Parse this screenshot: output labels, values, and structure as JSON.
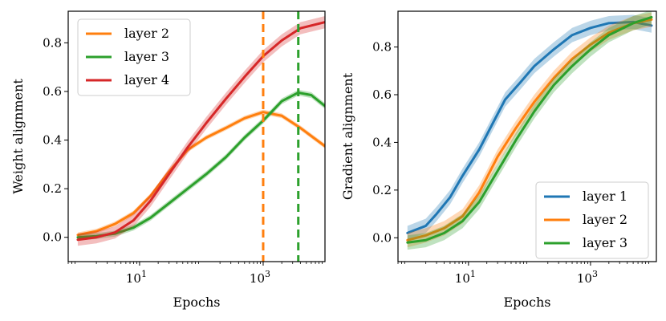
{
  "chart_data": [
    {
      "type": "line",
      "xscale": "log",
      "xlabel": "Epochs",
      "ylabel": "Weight alignment",
      "xlim": [
        0.7,
        10000
      ],
      "ylim": [
        -0.1,
        0.93
      ],
      "xticks": [
        {
          "value": 10,
          "base": "10",
          "exp": "1"
        },
        {
          "value": 1000,
          "base": "10",
          "exp": "3"
        }
      ],
      "yticks": [
        {
          "value": 0.0,
          "label": "0.0"
        },
        {
          "value": 0.2,
          "label": "0.2"
        },
        {
          "value": 0.4,
          "label": "0.4"
        },
        {
          "value": 0.6,
          "label": "0.6"
        },
        {
          "value": 0.8,
          "label": "0.8"
        }
      ],
      "legend_position": "upper-left",
      "vlines": [
        {
          "x": 1000,
          "color": "#ff7f0e"
        },
        {
          "x": 3700,
          "color": "#2ca02c"
        }
      ],
      "series": [
        {
          "name": "layer 2",
          "color": "#ff7f0e",
          "band": 0.01,
          "x": [
            1,
            2,
            4,
            8,
            15,
            30,
            60,
            120,
            250,
            500,
            1000,
            2000,
            4000,
            10000
          ],
          "y": [
            0.01,
            0.025,
            0.055,
            0.1,
            0.17,
            0.27,
            0.36,
            0.41,
            0.45,
            0.49,
            0.515,
            0.5,
            0.45,
            0.375
          ]
        },
        {
          "name": "layer 3",
          "color": "#2ca02c",
          "band": 0.012,
          "x": [
            1,
            2,
            4,
            8,
            15,
            30,
            60,
            120,
            250,
            500,
            1000,
            2000,
            3700,
            6000,
            10000
          ],
          "y": [
            0.0,
            0.005,
            0.015,
            0.04,
            0.08,
            0.14,
            0.2,
            0.26,
            0.33,
            0.41,
            0.48,
            0.56,
            0.595,
            0.585,
            0.54
          ]
        },
        {
          "name": "layer 4",
          "color": "#d62728",
          "band": 0.025,
          "x": [
            1,
            2,
            4,
            8,
            15,
            30,
            60,
            120,
            250,
            500,
            1000,
            2000,
            4000,
            10000
          ],
          "y": [
            -0.01,
            0.0,
            0.02,
            0.07,
            0.15,
            0.26,
            0.37,
            0.47,
            0.57,
            0.66,
            0.745,
            0.81,
            0.86,
            0.885
          ]
        }
      ]
    },
    {
      "type": "line",
      "xscale": "log",
      "xlabel": "Epochs",
      "ylabel": "Gradient alignment",
      "xlim": [
        0.7,
        12000
      ],
      "ylim": [
        -0.1,
        0.95
      ],
      "xticks": [
        {
          "value": 10,
          "base": "10",
          "exp": "1"
        },
        {
          "value": 1000,
          "base": "10",
          "exp": "3"
        }
      ],
      "yticks": [
        {
          "value": 0.0,
          "label": "0.0"
        },
        {
          "value": 0.2,
          "label": "0.2"
        },
        {
          "value": 0.4,
          "label": "0.4"
        },
        {
          "value": 0.6,
          "label": "0.6"
        },
        {
          "value": 0.8,
          "label": "0.8"
        }
      ],
      "legend_position": "lower-right",
      "vlines": [],
      "series": [
        {
          "name": "layer 1",
          "color": "#1f77b4",
          "band": 0.03,
          "x": [
            1,
            2,
            3,
            5,
            8,
            15,
            25,
            40,
            70,
            120,
            250,
            500,
            1000,
            2000,
            5000,
            10000
          ],
          "y": [
            0.02,
            0.05,
            0.1,
            0.17,
            0.26,
            0.37,
            0.48,
            0.58,
            0.65,
            0.72,
            0.79,
            0.85,
            0.88,
            0.9,
            0.905,
            0.89
          ]
        },
        {
          "name": "layer 2",
          "color": "#ff7f0e",
          "band": 0.03,
          "x": [
            1,
            2,
            4,
            8,
            15,
            30,
            60,
            120,
            250,
            500,
            1000,
            2000,
            5000,
            10000
          ],
          "y": [
            -0.01,
            0.01,
            0.04,
            0.09,
            0.19,
            0.34,
            0.46,
            0.57,
            0.67,
            0.75,
            0.81,
            0.86,
            0.9,
            0.915
          ]
        },
        {
          "name": "layer 3",
          "color": "#2ca02c",
          "band": 0.03,
          "x": [
            1,
            2,
            4,
            8,
            15,
            30,
            60,
            120,
            250,
            500,
            1000,
            2000,
            5000,
            10000
          ],
          "y": [
            -0.02,
            -0.01,
            0.02,
            0.07,
            0.15,
            0.28,
            0.41,
            0.53,
            0.64,
            0.72,
            0.79,
            0.85,
            0.9,
            0.925
          ]
        }
      ]
    }
  ]
}
